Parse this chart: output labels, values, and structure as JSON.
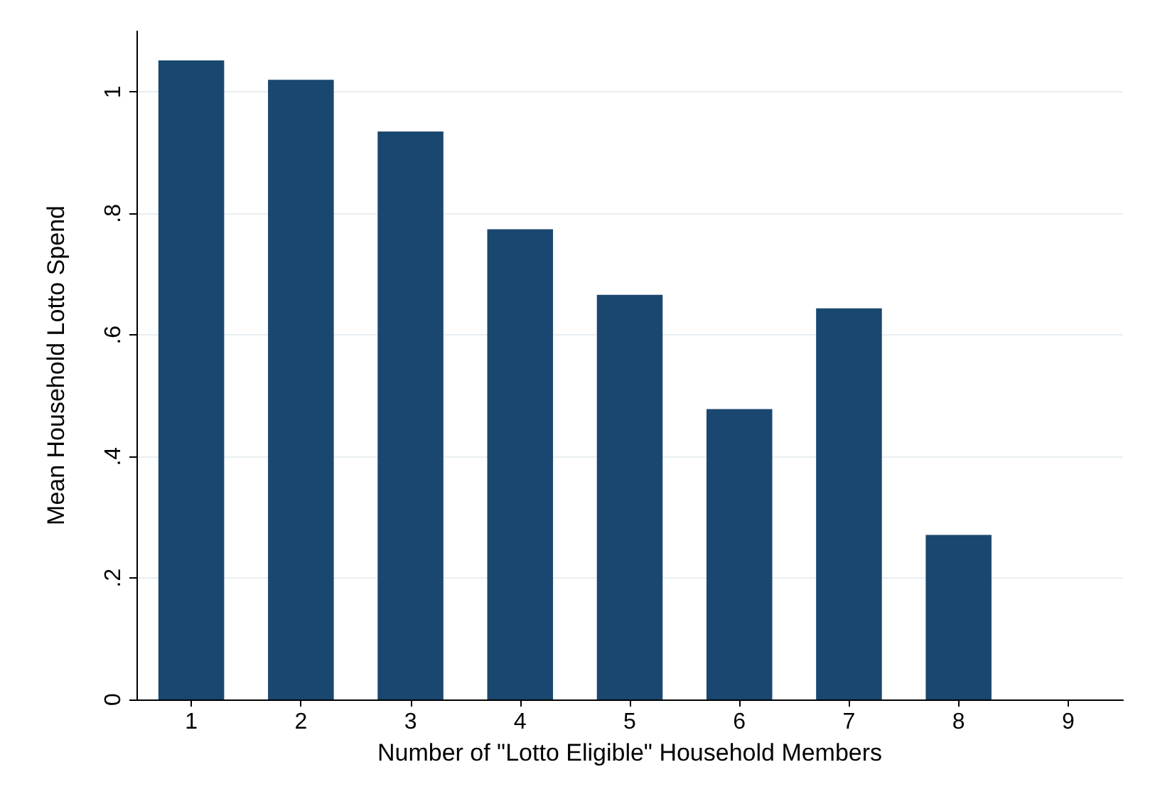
{
  "chart_data": {
    "type": "bar",
    "xlabel": "Number of \"Lotto Eligible\" Household Members",
    "ylabel": "Mean Household Lotto Spend",
    "categories": [
      "1",
      "2",
      "3",
      "4",
      "5",
      "6",
      "7",
      "8",
      "9"
    ],
    "values": [
      1.052,
      1.02,
      0.935,
      0.774,
      0.666,
      0.478,
      0.644,
      0.271,
      0
    ],
    "color": "#1a476f",
    "ylim": [
      0,
      1.1
    ],
    "yticks": [
      0,
      {
        "value": 0.2,
        "label": ".2"
      },
      {
        "value": 0.4,
        "label": ".4"
      },
      {
        "value": 0.6,
        "label": ".6"
      },
      {
        "value": 0.8,
        "label": ".8"
      },
      1
    ],
    "grid": "y"
  }
}
